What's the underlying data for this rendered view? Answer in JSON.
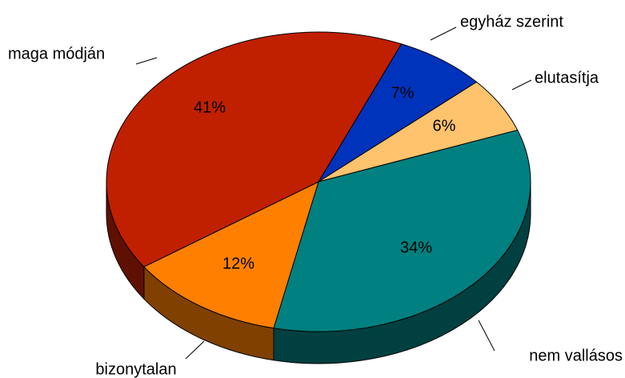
{
  "chart_data": {
    "type": "pie",
    "categories": [
      "egyház szerint",
      "elutasítja",
      "nem vallásos",
      "bizonytalan",
      "maga módján"
    ],
    "values": [
      7,
      6,
      34,
      12,
      41
    ],
    "value_labels": [
      "7%",
      "6%",
      "34%",
      "12%",
      "41%"
    ],
    "colors": [
      "#0033bb",
      "#ffc36e",
      "#008080",
      "#ff8000",
      "#c02000"
    ]
  }
}
